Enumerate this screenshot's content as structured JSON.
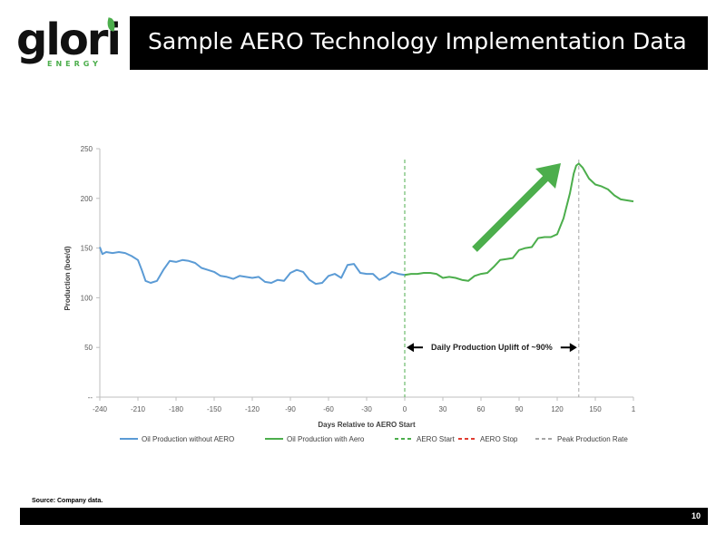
{
  "header": {
    "logo_text": "glori",
    "logo_subtext": "ENERGY",
    "title": "Sample AERO Technology Implementation Data"
  },
  "colors": {
    "oil_without_aero": "#5b9bd5",
    "oil_with_aero": "#4cae4c",
    "aero_start": "#4cae4c",
    "aero_stop": "#e03c31",
    "peak_rate": "#a6a6a6",
    "uplift_arrow": "#4cae4c"
  },
  "chart_data": {
    "type": "line",
    "xlabel": "Days Relative to AERO Start",
    "ylabel": "Production (boe/d)",
    "xlim": [
      -240,
      180
    ],
    "ylim": [
      0,
      250
    ],
    "x_ticks": [
      "-240",
      "-210",
      "-180",
      "-150",
      "-120",
      "-90",
      "-60",
      "-30",
      "0",
      "30",
      "60",
      "90",
      "120",
      "150",
      "1"
    ],
    "y_ticks": [
      "--",
      "50",
      "100",
      "150",
      "200",
      "250"
    ],
    "grid": false,
    "legend_position": "bottom",
    "series": [
      {
        "name": "Oil Production without AERO",
        "x": [
          -240,
          -238,
          -235,
          -230,
          -225,
          -220,
          -215,
          -210,
          -207,
          -204,
          -200,
          -195,
          -190,
          -185,
          -180,
          -175,
          -170,
          -165,
          -160,
          -155,
          -150,
          -145,
          -140,
          -135,
          -130,
          -125,
          -120,
          -115,
          -110,
          -105,
          -100,
          -95,
          -90,
          -85,
          -80,
          -75,
          -70,
          -65,
          -60,
          -55,
          -50,
          -45,
          -40,
          -35,
          -30,
          -25,
          -20,
          -15,
          -10,
          -5,
          0
        ],
        "y": [
          151,
          144,
          146,
          145,
          146,
          145,
          142,
          138,
          128,
          117,
          115,
          117,
          128,
          137,
          136,
          138,
          137,
          135,
          130,
          128,
          126,
          122,
          121,
          119,
          122,
          121,
          120,
          121,
          116,
          115,
          118,
          117,
          125,
          128,
          126,
          118,
          114,
          115,
          122,
          124,
          120,
          133,
          134,
          125,
          124,
          124,
          118,
          121,
          126,
          124,
          123
        ]
      },
      {
        "name": "Oil Production with Aero",
        "x": [
          0,
          5,
          10,
          15,
          20,
          25,
          30,
          35,
          40,
          45,
          50,
          55,
          60,
          65,
          70,
          75,
          80,
          85,
          90,
          95,
          100,
          105,
          110,
          115,
          120,
          125,
          130,
          133,
          135,
          137,
          140,
          145,
          150,
          155,
          160,
          165,
          170,
          175,
          180
        ],
        "y": [
          123,
          124,
          124,
          125,
          125,
          124,
          120,
          121,
          120,
          118,
          117,
          122,
          124,
          125,
          131,
          138,
          139,
          140,
          148,
          150,
          151,
          160,
          161,
          161,
          164,
          180,
          205,
          225,
          233,
          235,
          231,
          220,
          214,
          212,
          209,
          203,
          199,
          198,
          197
        ]
      }
    ],
    "vertical_lines": [
      {
        "name": "AERO Start",
        "x": 0
      },
      {
        "name": "Peak Production Rate",
        "x": 137
      }
    ],
    "legend": [
      {
        "label": "Oil Production without AERO",
        "style": "solid",
        "color_key": "oil_without_aero"
      },
      {
        "label": "Oil Production with Aero",
        "style": "solid",
        "color_key": "oil_with_aero"
      },
      {
        "label": "AERO Start",
        "style": "dashed",
        "color_key": "aero_start"
      },
      {
        "label": "AERO Stop",
        "style": "dashed",
        "color_key": "aero_stop"
      },
      {
        "label": "Peak Production Rate",
        "style": "dashed",
        "color_key": "peak_rate"
      }
    ],
    "annotations": [
      {
        "text": "Daily Production Uplift of ~90%"
      }
    ]
  },
  "footer": {
    "source": "Source: Company data.",
    "page_number": "10"
  }
}
